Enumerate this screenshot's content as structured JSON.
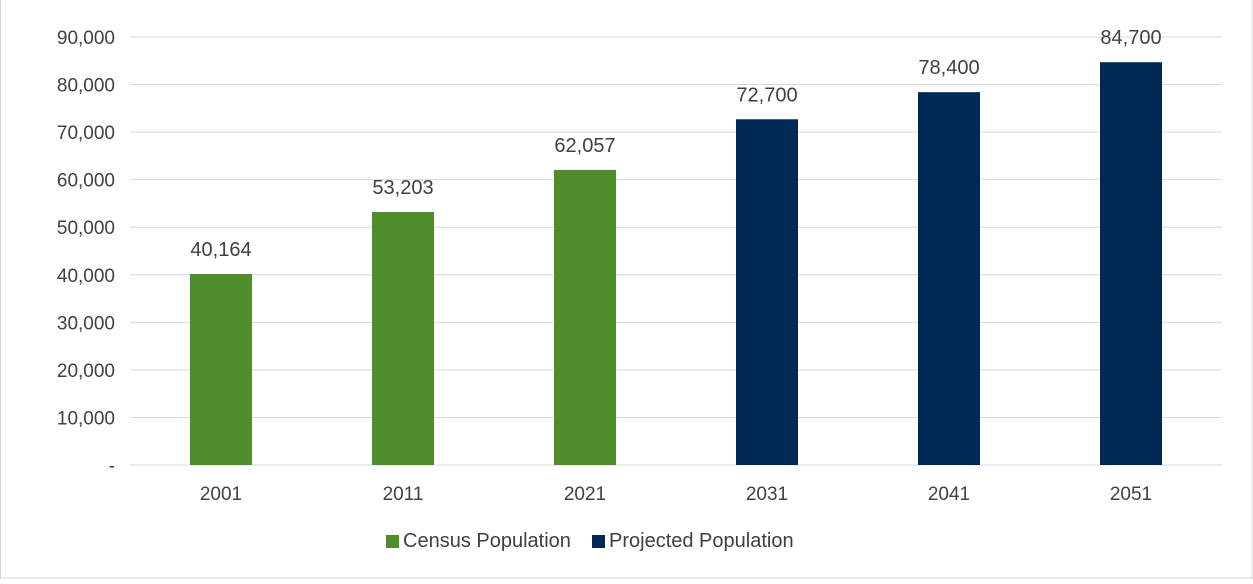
{
  "chart_data": {
    "type": "bar",
    "title": "",
    "categories": [
      "2001",
      "2011",
      "2021",
      "2031",
      "2041",
      "2051"
    ],
    "series": [
      {
        "name": "Census Population",
        "color": "#4e8c2c",
        "values": [
          40164,
          53203,
          62057,
          null,
          null,
          null
        ]
      },
      {
        "name": "Projected Population",
        "color": "#002855",
        "values": [
          null,
          null,
          null,
          72700,
          78400,
          84700
        ]
      }
    ],
    "data_labels": [
      "40,164",
      "53,203",
      "62,057",
      "72,700",
      "78,400",
      "84,700"
    ],
    "yticks": [
      0,
      10000,
      20000,
      30000,
      40000,
      50000,
      60000,
      70000,
      80000,
      90000
    ],
    "ytick_labels": [
      "-",
      "10,000",
      "20,000",
      "30,000",
      "40,000",
      "50,000",
      "60,000",
      "70,000",
      "80,000",
      "90,000"
    ],
    "ylim": [
      0,
      90000
    ],
    "xlabel": "",
    "ylabel": "",
    "grid": true,
    "legend_position": "bottom"
  },
  "colors": {
    "gridline": "#d9d9d9",
    "axis_text": "#404040",
    "frame": "#d9d9d9"
  }
}
